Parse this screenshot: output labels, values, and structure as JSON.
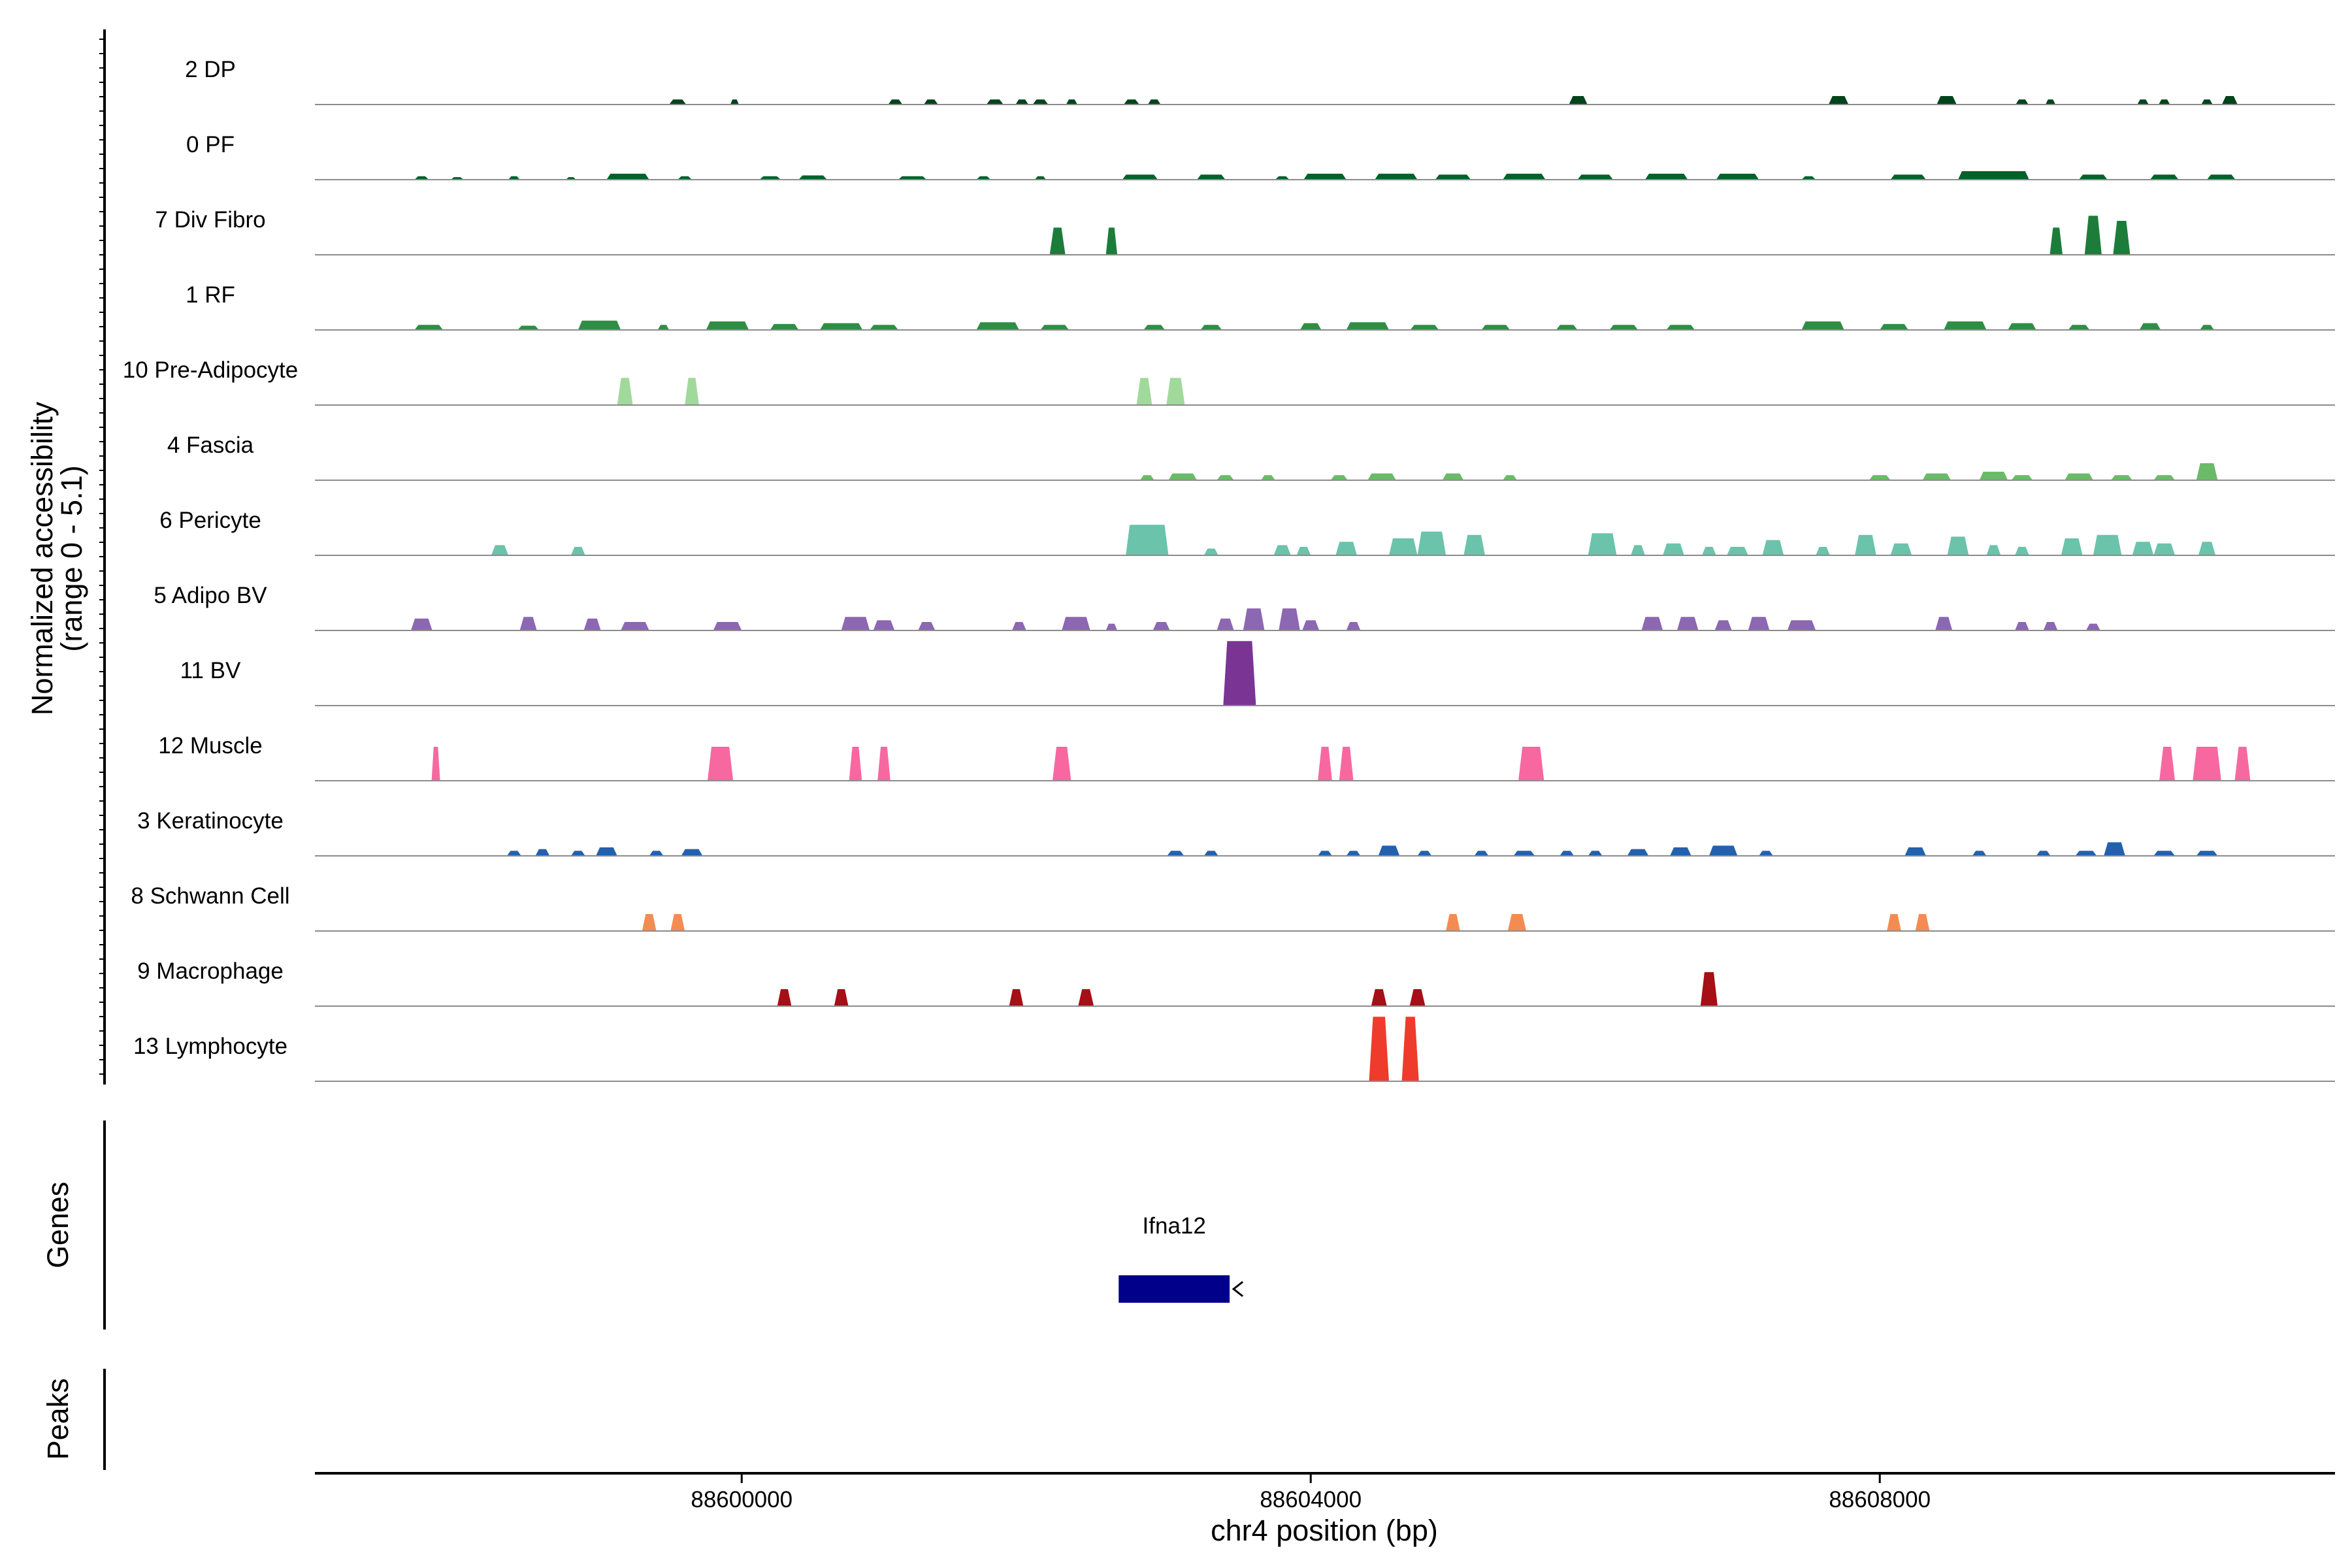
{
  "chart_data": {
    "type": "area",
    "title": "",
    "ylabel_line1": "Normalized accessibility",
    "ylabel_line2": "(range 0 - 5.1)",
    "yrange": [
      0,
      5.1
    ],
    "xlabel": "chr4 position (bp)",
    "xlim": [
      88597000,
      88611200
    ],
    "xticks": [
      {
        "value": 88600000,
        "label": "88600000"
      },
      {
        "value": 88604000,
        "label": "88604000"
      },
      {
        "value": 88608000,
        "label": "88608000"
      }
    ],
    "gene_panel_label": "Genes",
    "peak_panel_label": "Peaks",
    "genes": [
      {
        "name": "Ifna12",
        "start": 88602650,
        "end": 88603430,
        "strand": "-",
        "color": "#00008b"
      }
    ],
    "tracks": [
      {
        "name": "2 DP",
        "color": "#00441b",
        "peaks": [
          [
            88599550,
            120,
            0.3
          ],
          [
            88599950,
            60,
            0.3
          ],
          [
            88601080,
            100,
            0.3
          ],
          [
            88601330,
            100,
            0.3
          ],
          [
            88601780,
            120,
            0.3
          ],
          [
            88601970,
            90,
            0.3
          ],
          [
            88602100,
            110,
            0.3
          ],
          [
            88602320,
            80,
            0.3
          ],
          [
            88602740,
            110,
            0.3
          ],
          [
            88602900,
            90,
            0.3
          ],
          [
            88605880,
            130,
            0.5
          ],
          [
            88607710,
            140,
            0.5
          ],
          [
            88608470,
            140,
            0.5
          ],
          [
            88609000,
            90,
            0.3
          ],
          [
            88609200,
            70,
            0.3
          ],
          [
            88609850,
            80,
            0.3
          ],
          [
            88610000,
            80,
            0.3
          ],
          [
            88610300,
            80,
            0.3
          ],
          [
            88610460,
            110,
            0.5
          ]
        ]
      },
      {
        "name": "0 PF",
        "color": "#00612a",
        "peaks": [
          [
            88597750,
            100,
            0.2
          ],
          [
            88598000,
            90,
            0.15
          ],
          [
            88598400,
            80,
            0.2
          ],
          [
            88598800,
            70,
            0.15
          ],
          [
            88599200,
            300,
            0.35
          ],
          [
            88599600,
            100,
            0.2
          ],
          [
            88600200,
            150,
            0.2
          ],
          [
            88600500,
            200,
            0.25
          ],
          [
            88601200,
            200,
            0.2
          ],
          [
            88601700,
            100,
            0.2
          ],
          [
            88602100,
            80,
            0.2
          ],
          [
            88602800,
            250,
            0.3
          ],
          [
            88603300,
            200,
            0.3
          ],
          [
            88603800,
            100,
            0.2
          ],
          [
            88604100,
            300,
            0.35
          ],
          [
            88604600,
            300,
            0.35
          ],
          [
            88605000,
            250,
            0.3
          ],
          [
            88605500,
            300,
            0.35
          ],
          [
            88606000,
            250,
            0.3
          ],
          [
            88606500,
            300,
            0.35
          ],
          [
            88607000,
            300,
            0.35
          ],
          [
            88607500,
            100,
            0.2
          ],
          [
            88608200,
            250,
            0.3
          ],
          [
            88608800,
            500,
            0.5
          ],
          [
            88609500,
            200,
            0.3
          ],
          [
            88610000,
            200,
            0.3
          ],
          [
            88610400,
            200,
            0.3
          ]
        ]
      },
      {
        "name": "7 Div Fibro",
        "color": "#1e7c3a",
        "peaks": [
          [
            88602220,
            110,
            1.6
          ],
          [
            88602600,
            80,
            1.6
          ],
          [
            88609240,
            90,
            1.6
          ],
          [
            88609500,
            120,
            2.3
          ],
          [
            88609700,
            120,
            2.0
          ]
        ]
      },
      {
        "name": "1 RF",
        "color": "#2f8e45",
        "peaks": [
          [
            88597800,
            200,
            0.3
          ],
          [
            88598500,
            150,
            0.25
          ],
          [
            88599000,
            300,
            0.55
          ],
          [
            88599450,
            80,
            0.3
          ],
          [
            88599900,
            300,
            0.5
          ],
          [
            88600300,
            200,
            0.35
          ],
          [
            88600700,
            300,
            0.4
          ],
          [
            88601000,
            200,
            0.3
          ],
          [
            88601800,
            300,
            0.45
          ],
          [
            88602200,
            200,
            0.3
          ],
          [
            88602900,
            150,
            0.3
          ],
          [
            88603300,
            150,
            0.3
          ],
          [
            88604000,
            150,
            0.4
          ],
          [
            88604400,
            300,
            0.45
          ],
          [
            88604800,
            200,
            0.3
          ],
          [
            88605300,
            200,
            0.3
          ],
          [
            88605800,
            150,
            0.3
          ],
          [
            88606200,
            200,
            0.3
          ],
          [
            88606600,
            200,
            0.3
          ],
          [
            88607600,
            300,
            0.5
          ],
          [
            88608100,
            200,
            0.35
          ],
          [
            88608600,
            300,
            0.5
          ],
          [
            88609000,
            200,
            0.4
          ],
          [
            88609400,
            150,
            0.3
          ],
          [
            88609900,
            150,
            0.4
          ],
          [
            88610300,
            100,
            0.3
          ]
        ]
      },
      {
        "name": "10 Pre-Adipocyte",
        "color": "#a1d99b",
        "peaks": [
          [
            88599180,
            110,
            1.6
          ],
          [
            88599650,
            100,
            1.6
          ],
          [
            88602830,
            110,
            1.6
          ],
          [
            88603050,
            130,
            1.6
          ]
        ]
      },
      {
        "name": "4 Fascia",
        "color": "#6abb67",
        "peaks": [
          [
            88602850,
            100,
            0.3
          ],
          [
            88603100,
            200,
            0.4
          ],
          [
            88603400,
            120,
            0.3
          ],
          [
            88603700,
            100,
            0.3
          ],
          [
            88604200,
            120,
            0.3
          ],
          [
            88604500,
            200,
            0.4
          ],
          [
            88605000,
            150,
            0.4
          ],
          [
            88605400,
            100,
            0.3
          ],
          [
            88608000,
            150,
            0.3
          ],
          [
            88608400,
            200,
            0.4
          ],
          [
            88608800,
            200,
            0.5
          ],
          [
            88609000,
            150,
            0.3
          ],
          [
            88609400,
            200,
            0.4
          ],
          [
            88609700,
            150,
            0.3
          ],
          [
            88610000,
            150,
            0.3
          ],
          [
            88610300,
            150,
            1.0
          ]
        ]
      },
      {
        "name": "6 Pericyte",
        "color": "#6ac3aa",
        "peaks": [
          [
            88598300,
            120,
            0.6
          ],
          [
            88598850,
            100,
            0.5
          ],
          [
            88602850,
            300,
            1.8
          ],
          [
            88603300,
            100,
            0.4
          ],
          [
            88603800,
            120,
            0.6
          ],
          [
            88603950,
            100,
            0.5
          ],
          [
            88604250,
            150,
            0.8
          ],
          [
            88604650,
            200,
            1.0
          ],
          [
            88604850,
            200,
            1.4
          ],
          [
            88605150,
            150,
            1.2
          ],
          [
            88606050,
            200,
            1.3
          ],
          [
            88606300,
            100,
            0.6
          ],
          [
            88606550,
            150,
            0.7
          ],
          [
            88606800,
            100,
            0.5
          ],
          [
            88607000,
            150,
            0.5
          ],
          [
            88607250,
            150,
            0.9
          ],
          [
            88607600,
            100,
            0.5
          ],
          [
            88607900,
            150,
            1.2
          ],
          [
            88608150,
            150,
            0.7
          ],
          [
            88608550,
            150,
            1.1
          ],
          [
            88608800,
            100,
            0.6
          ],
          [
            88609000,
            100,
            0.5
          ],
          [
            88609350,
            150,
            1.0
          ],
          [
            88609600,
            200,
            1.2
          ],
          [
            88609850,
            150,
            0.8
          ],
          [
            88610000,
            150,
            0.7
          ],
          [
            88610300,
            120,
            0.8
          ]
        ]
      },
      {
        "name": "5 Adipo BV",
        "color": "#8c67b2",
        "peaks": [
          [
            88597750,
            150,
            0.7
          ],
          [
            88598500,
            120,
            0.8
          ],
          [
            88598950,
            120,
            0.7
          ],
          [
            88599250,
            200,
            0.5
          ],
          [
            88599900,
            200,
            0.5
          ],
          [
            88600800,
            200,
            0.8
          ],
          [
            88601000,
            150,
            0.6
          ],
          [
            88601300,
            120,
            0.5
          ],
          [
            88601950,
            100,
            0.5
          ],
          [
            88602350,
            200,
            0.8
          ],
          [
            88602600,
            80,
            0.4
          ],
          [
            88602950,
            120,
            0.5
          ],
          [
            88603400,
            120,
            0.7
          ],
          [
            88603600,
            150,
            1.3
          ],
          [
            88603850,
            150,
            1.3
          ],
          [
            88604000,
            120,
            0.6
          ],
          [
            88604300,
            100,
            0.5
          ],
          [
            88606400,
            150,
            0.8
          ],
          [
            88606650,
            150,
            0.8
          ],
          [
            88606900,
            120,
            0.6
          ],
          [
            88607150,
            150,
            0.8
          ],
          [
            88607450,
            200,
            0.6
          ],
          [
            88608450,
            120,
            0.8
          ],
          [
            88609000,
            100,
            0.5
          ],
          [
            88609200,
            100,
            0.5
          ],
          [
            88609500,
            100,
            0.4
          ]
        ]
      },
      {
        "name": "11 BV",
        "color": "#7a3594",
        "peaks": [
          [
            88603500,
            230,
            3.8
          ]
        ]
      },
      {
        "name": "12 Muscle",
        "color": "#f768a1",
        "peaks": [
          [
            88597850,
            60,
            2.0
          ],
          [
            88599850,
            180,
            2.0
          ],
          [
            88600800,
            90,
            2.0
          ],
          [
            88601000,
            90,
            2.0
          ],
          [
            88602250,
            130,
            2.0
          ],
          [
            88604100,
            100,
            2.0
          ],
          [
            88604250,
            100,
            2.0
          ],
          [
            88605550,
            180,
            2.0
          ],
          [
            88610020,
            110,
            2.0
          ],
          [
            88610300,
            200,
            2.0
          ],
          [
            88610550,
            110,
            2.0
          ]
        ]
      },
      {
        "name": "3 Keratinocyte",
        "color": "#2161b0",
        "peaks": [
          [
            88598400,
            100,
            0.3
          ],
          [
            88598600,
            100,
            0.4
          ],
          [
            88598850,
            100,
            0.3
          ],
          [
            88599050,
            150,
            0.5
          ],
          [
            88599400,
            100,
            0.3
          ],
          [
            88599650,
            150,
            0.4
          ],
          [
            88603050,
            120,
            0.3
          ],
          [
            88603300,
            100,
            0.3
          ],
          [
            88604100,
            100,
            0.3
          ],
          [
            88604300,
            100,
            0.3
          ],
          [
            88604550,
            150,
            0.6
          ],
          [
            88604800,
            100,
            0.3
          ],
          [
            88605200,
            100,
            0.3
          ],
          [
            88605500,
            150,
            0.3
          ],
          [
            88605800,
            100,
            0.3
          ],
          [
            88606000,
            100,
            0.3
          ],
          [
            88606300,
            150,
            0.4
          ],
          [
            88606600,
            150,
            0.5
          ],
          [
            88606900,
            200,
            0.6
          ],
          [
            88607200,
            100,
            0.3
          ],
          [
            88608250,
            150,
            0.5
          ],
          [
            88608700,
            100,
            0.3
          ],
          [
            88609150,
            100,
            0.3
          ],
          [
            88609450,
            150,
            0.3
          ],
          [
            88609650,
            150,
            0.8
          ],
          [
            88610000,
            150,
            0.3
          ],
          [
            88610300,
            150,
            0.3
          ]
        ]
      },
      {
        "name": "8 Schwann Cell",
        "color": "#f48c52",
        "peaks": [
          [
            88599350,
            100,
            1.0
          ],
          [
            88599550,
            100,
            1.0
          ],
          [
            88605000,
            100,
            1.0
          ],
          [
            88605450,
            130,
            1.0
          ],
          [
            88608100,
            100,
            1.0
          ],
          [
            88608300,
            100,
            1.0
          ]
        ]
      },
      {
        "name": "9 Macrophage",
        "color": "#a50f15",
        "peaks": [
          [
            88600300,
            100,
            1.0
          ],
          [
            88600700,
            100,
            1.0
          ],
          [
            88601930,
            100,
            1.0
          ],
          [
            88602420,
            110,
            1.0
          ],
          [
            88604480,
            110,
            1.0
          ],
          [
            88604750,
            110,
            1.0
          ],
          [
            88606800,
            120,
            2.0
          ]
        ]
      },
      {
        "name": "13 Lymphocyte",
        "color": "#ef3b2c",
        "peaks": [
          [
            88604480,
            140,
            3.8
          ],
          [
            88604700,
            120,
            3.8
          ]
        ]
      }
    ]
  }
}
